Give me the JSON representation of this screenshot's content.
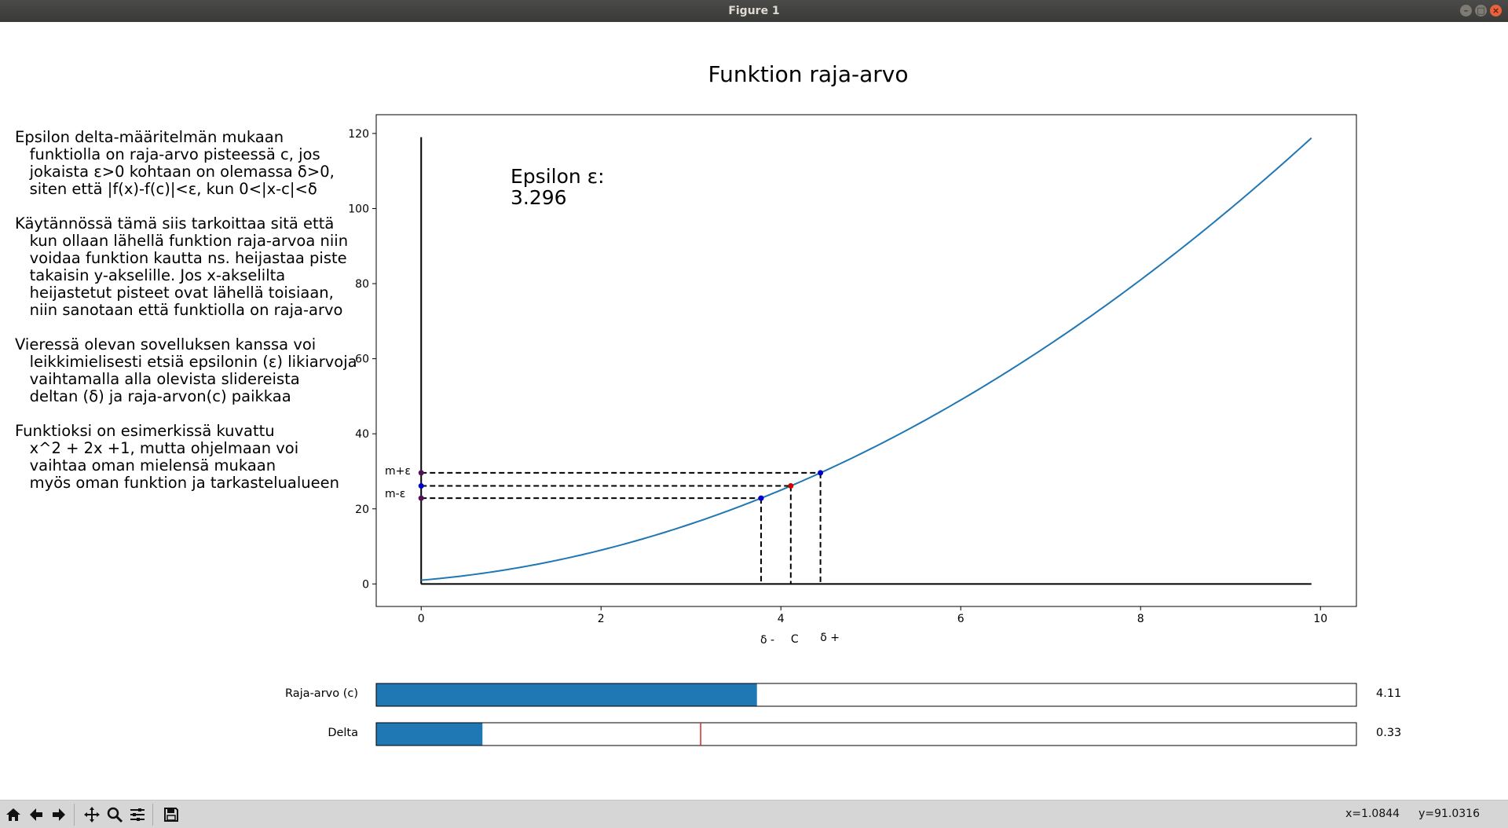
{
  "window": {
    "title": "Figure 1"
  },
  "figure": {
    "title": "Funktion raja-arvo",
    "explanation": [
      [
        "Epsilon delta-määritelmän mukaan",
        "   funktiolla on raja-arvo pisteessä c, jos",
        "   jokaista ε>0 kohtaan on olemassa δ>0,",
        "   siten että |f(x)-f(c)|<ε, kun 0<|x-c|<δ"
      ],
      [
        "Käytännössä tämä siis tarkoittaa sitä että",
        "   kun ollaan lähellä funktion raja-arvoa niin",
        "   voidaa funktion kautta ns. heijastaa piste",
        "   takaisin y-akselille. Jos x-akselilta",
        "   heijastetut pisteet ovat lähellä toisiaan,",
        "   niin sanotaan että funktiolla on raja-arvo"
      ],
      [
        "Vieressä olevan sovelluksen kanssa voi",
        "   leikkimielisesti etsiä epsilonin (ε) likiarvoja",
        "   vaihtamalla alla olevista slidereista",
        "   deltan (δ) ja raja-arvon(c) paikkaa"
      ],
      [
        "Funktioksi on esimerkissä kuvattu",
        "   x^2 + 2x +1, mutta ohjelmaan voi",
        "   vaihtaa oman mielensä mukaan",
        "   myös oman funktion ja tarkastelualueen"
      ]
    ]
  },
  "chart_data": {
    "type": "line",
    "function": "x^2 + 2x + 1",
    "x_range": [
      0,
      9.9
    ],
    "xlim": [
      -0.5,
      10.4
    ],
    "ylim": [
      -6,
      125
    ],
    "xticks": [
      0,
      2,
      4,
      6,
      8,
      10
    ],
    "yticks": [
      0,
      20,
      40,
      60,
      80,
      100,
      120
    ],
    "c": 4.11,
    "delta": 0.33,
    "epsilon_label": "Epsilon ε:",
    "epsilon_value": "3.296",
    "y_marker_labels": {
      "upper": "m+ε",
      "lower": "m-ε"
    },
    "x_marker_labels": {
      "left": "δ -",
      "center": "C",
      "right": "δ +"
    },
    "colors": {
      "curve": "#1f77b4",
      "point_blue": "#0000cc",
      "point_red": "#cc0000",
      "dashed": "#000000"
    }
  },
  "sliders": [
    {
      "label": "Raja-arvo (c)",
      "value": 4.11,
      "value_text": "4.11",
      "fraction": 0.388,
      "color": "#1f77b4"
    },
    {
      "label": "Delta",
      "value": 0.33,
      "value_text": "0.33",
      "fraction": 0.108,
      "init_marker_fraction": 0.331,
      "color": "#1f77b4"
    }
  ],
  "toolbar": {
    "buttons": [
      "home-icon",
      "back-icon",
      "forward-icon",
      "pan-icon",
      "zoom-icon",
      "configure-icon",
      "save-icon"
    ],
    "x_readout": "x=1.0844",
    "y_readout": "y=91.0316"
  }
}
